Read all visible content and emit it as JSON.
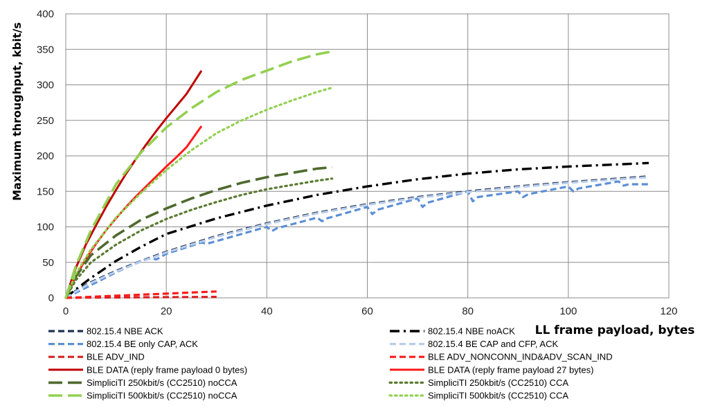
{
  "chart_data": {
    "type": "line",
    "title": "",
    "xlabel": "LL  frame payload, bytes",
    "ylabel": "Maximum throughput, kbit/s",
    "xlim": [
      0,
      120
    ],
    "ylim": [
      0,
      400
    ],
    "xticks": [
      0,
      20,
      40,
      60,
      80,
      100,
      120
    ],
    "yticks": [
      0,
      50,
      100,
      150,
      200,
      250,
      300,
      350,
      400
    ],
    "grid": true,
    "legend_position": "bottom",
    "series": [
      {
        "name": "802.15.4 NBE ACK",
        "color": "#1f3050",
        "dash": "dash",
        "x": [
          0,
          2,
          5,
          10,
          15,
          20,
          30,
          40,
          50,
          60,
          70,
          80,
          90,
          100,
          110,
          116
        ],
        "y": [
          0,
          10,
          22,
          38,
          52,
          65,
          87,
          105,
          120,
          132,
          142,
          150,
          157,
          163,
          168,
          171
        ]
      },
      {
        "name": "802.15.4 NBE noACK",
        "color": "#000000",
        "dash": "dashdot",
        "x": [
          0,
          2,
          5,
          10,
          15,
          20,
          30,
          40,
          50,
          60,
          70,
          80,
          90,
          100,
          110,
          116
        ],
        "y": [
          0,
          12,
          28,
          52,
          72,
          90,
          112,
          130,
          145,
          157,
          167,
          175,
          181,
          185,
          188,
          190
        ]
      },
      {
        "name": "802.15.4 BE only CAP, ACK",
        "color": "#5b8fd6",
        "dash": "dash",
        "x": [
          0,
          5,
          10,
          15,
          17,
          18,
          20,
          27,
          28,
          30,
          40,
          41,
          42,
          50,
          51,
          52,
          60,
          61,
          62,
          70,
          71,
          72,
          80,
          81,
          82,
          90,
          91,
          92,
          100,
          101,
          102,
          110,
          111,
          112,
          116
        ],
        "y": [
          0,
          18,
          36,
          52,
          56,
          54,
          62,
          78,
          76,
          80,
          100,
          94,
          98,
          113,
          108,
          112,
          128,
          118,
          124,
          140,
          128,
          134,
          150,
          136,
          142,
          150,
          142,
          146,
          157,
          150,
          154,
          164,
          158,
          160,
          160
        ]
      },
      {
        "name": "802.15.4 BE CAP and CFP, ACK",
        "color": "#b8cdec",
        "dash": "dash",
        "x": [
          0,
          2,
          5,
          10,
          15,
          20,
          30,
          40,
          50,
          60,
          70,
          80,
          90,
          100,
          110,
          116
        ],
        "y": [
          0,
          9,
          21,
          37,
          51,
          64,
          86,
          104,
          119,
          131,
          141,
          149,
          156,
          162,
          167,
          170
        ]
      },
      {
        "name": "BLE ADV_IND",
        "color": "#d62020",
        "dash": "dash",
        "x": [
          0,
          5,
          10,
          15,
          20,
          25,
          30
        ],
        "y": [
          0,
          0.4,
          0.6,
          0.8,
          1.0,
          1.2,
          1.4
        ]
      },
      {
        "name": "BLE ADV_NONCONN_IND&ADV_SCAN_IND",
        "color": "#ff1a1a",
        "dash": "dash",
        "x": [
          0,
          5,
          10,
          15,
          20,
          25,
          30
        ],
        "y": [
          0,
          1.5,
          3.0,
          4.5,
          6.0,
          7.5,
          9.0
        ]
      },
      {
        "name": "BLE DATA (reply frame payload 0 bytes)",
        "color": "#c00000",
        "dash": "solid",
        "x": [
          0,
          1,
          2,
          4,
          6,
          8,
          10,
          12,
          14,
          16,
          18,
          20,
          22,
          24,
          27
        ],
        "y": [
          0,
          22,
          42,
          75,
          102,
          128,
          152,
          175,
          196,
          216,
          235,
          253,
          270,
          287,
          320
        ]
      },
      {
        "name": "BLE DATA (reply frame payload 27 bytes)",
        "color": "#ff1a1a",
        "dash": "solid",
        "x": [
          0,
          1,
          2,
          4,
          6,
          8,
          10,
          12,
          14,
          16,
          18,
          20,
          22,
          24,
          27
        ],
        "y": [
          0,
          16,
          30,
          55,
          76,
          95,
          112,
          128,
          143,
          157,
          171,
          185,
          198,
          212,
          242
        ]
      },
      {
        "name": "SimpliciTI 250kbit/s (CC2510) noCCA",
        "color": "#4e6a2e",
        "dash": "longdash",
        "x": [
          0,
          2,
          5,
          10,
          15,
          20,
          25,
          30,
          35,
          40,
          45,
          50,
          53
        ],
        "y": [
          0,
          30,
          60,
          88,
          110,
          126,
          140,
          152,
          162,
          170,
          176,
          182,
          184
        ]
      },
      {
        "name": "SimpliciTI 250kbit/s (CC2510) CCA",
        "color": "#5a7a30",
        "dash": "dot",
        "x": [
          0,
          2,
          5,
          10,
          15,
          20,
          25,
          30,
          35,
          40,
          45,
          50,
          53
        ],
        "y": [
          0,
          25,
          50,
          75,
          95,
          111,
          124,
          135,
          145,
          153,
          159,
          165,
          168
        ]
      },
      {
        "name": "SimpliciTI 500kbit/s (CC2510) noCCA",
        "color": "#92d050",
        "dash": "longdash",
        "x": [
          0,
          2,
          5,
          10,
          15,
          20,
          25,
          30,
          35,
          40,
          45,
          50,
          53
        ],
        "y": [
          0,
          45,
          95,
          160,
          205,
          240,
          267,
          290,
          307,
          320,
          333,
          343,
          347
        ]
      },
      {
        "name": "SimpliciTI 500kbit/s (CC2510) CCA",
        "color": "#92d050",
        "dash": "dot",
        "x": [
          0,
          2,
          5,
          10,
          15,
          20,
          25,
          30,
          35,
          40,
          45,
          50,
          53
        ],
        "y": [
          0,
          34,
          68,
          113,
          148,
          180,
          208,
          232,
          250,
          265,
          278,
          290,
          296
        ]
      }
    ]
  }
}
